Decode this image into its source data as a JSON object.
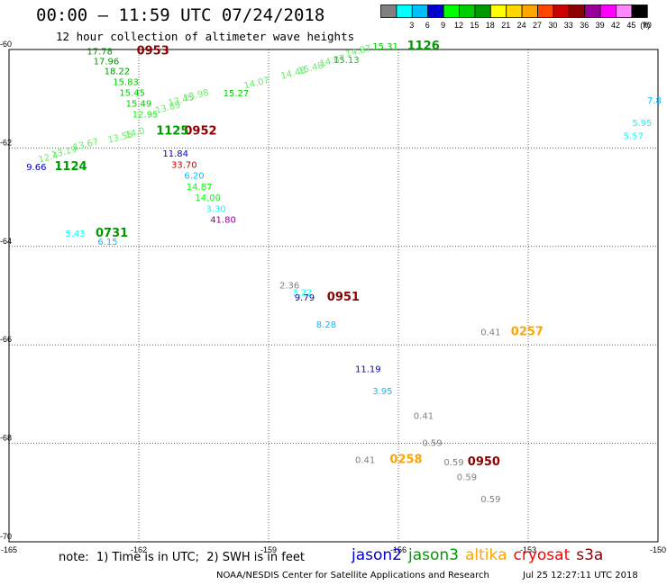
{
  "title": "00:00 – 11:59 UTC 07/24/2018",
  "subtitle": "12 hour collection of altimeter wave heights",
  "legend": {
    "unit_label": "(ft)",
    "bins": [
      {
        "label": "",
        "color": "#808080"
      },
      {
        "label": "3",
        "color": "#00ffff"
      },
      {
        "label": "6",
        "color": "#00bfff"
      },
      {
        "label": "9",
        "color": "#0000cd"
      },
      {
        "label": "12",
        "color": "#00ff00"
      },
      {
        "label": "15",
        "color": "#00cd00"
      },
      {
        "label": "18",
        "color": "#009900"
      },
      {
        "label": "21",
        "color": "#ffff00"
      },
      {
        "label": "24",
        "color": "#ffd700"
      },
      {
        "label": "27",
        "color": "#ffa500"
      },
      {
        "label": "30",
        "color": "#ff4500"
      },
      {
        "label": "33",
        "color": "#cd0000"
      },
      {
        "label": "36",
        "color": "#8b0000"
      },
      {
        "label": "39",
        "color": "#990099"
      },
      {
        "label": "42",
        "color": "#ff00ff"
      },
      {
        "label": "45",
        "color": "#ff88ff"
      },
      {
        "label": "70",
        "color": "#000000"
      }
    ]
  },
  "map": {
    "lon_ticks": [
      "-165",
      "-162",
      "-159",
      "-156",
      "-153",
      "-150"
    ],
    "lat_ticks": [
      "-60",
      "-62",
      "-64",
      "-66",
      "-68",
      "-70"
    ],
    "lon_range": [
      -165,
      -150
    ],
    "lat_range": [
      -60,
      -70
    ]
  },
  "observations": [
    {
      "text": "0953",
      "lon": -162.05,
      "lat": -60.1,
      "color": "#8b0000",
      "kind": "time"
    },
    {
      "text": "17.78",
      "lon": -163.2,
      "lat": -60.1,
      "color": "#009900"
    },
    {
      "text": "17.96",
      "lon": -163.05,
      "lat": -60.3,
      "color": "#009900"
    },
    {
      "text": "18.22",
      "lon": -162.8,
      "lat": -60.5,
      "color": "#009900"
    },
    {
      "text": "15.83",
      "lon": -162.6,
      "lat": -60.72,
      "color": "#00cd00"
    },
    {
      "text": "15.45",
      "lon": -162.45,
      "lat": -60.94,
      "color": "#00cd00"
    },
    {
      "text": "15.49",
      "lon": -162.3,
      "lat": -61.16,
      "color": "#00cd00"
    },
    {
      "text": "12.95",
      "lon": -162.15,
      "lat": -61.38,
      "color": "#00ff00"
    },
    {
      "text": "11.84",
      "lon": -161.45,
      "lat": -62.18,
      "color": "#0000cd"
    },
    {
      "text": "33.70",
      "lon": -161.25,
      "lat": -62.4,
      "color": "#cd0000"
    },
    {
      "text": "6.20",
      "lon": -160.95,
      "lat": -62.62,
      "color": "#00bfff"
    },
    {
      "text": "14.87",
      "lon": -160.9,
      "lat": -62.85,
      "color": "#00ff00"
    },
    {
      "text": "14.00",
      "lon": -160.7,
      "lat": -63.07,
      "color": "#00ff00"
    },
    {
      "text": "3.30",
      "lon": -160.45,
      "lat": -63.3,
      "color": "#00ffff"
    },
    {
      "text": "41.80",
      "lon": -160.35,
      "lat": -63.52,
      "color": "#990099"
    },
    {
      "text": "0952",
      "lon": -160.95,
      "lat": -61.73,
      "color": "#8b0000",
      "kind": "time"
    },
    {
      "text": "1125",
      "lon": -161.6,
      "lat": -61.73,
      "color": "#009900",
      "kind": "time"
    },
    {
      "text": "9.66",
      "lon": -164.6,
      "lat": -62.45,
      "color": "#0000cd"
    },
    {
      "text": "1124",
      "lon": -163.95,
      "lat": -62.45,
      "color": "#009900",
      "kind": "time"
    },
    {
      "text": "12.4",
      "lon": -164.3,
      "lat": -62.3,
      "color": "#66ee66"
    },
    {
      "text": "13.19",
      "lon": -164.0,
      "lat": -62.2,
      "color": "#66ee66"
    },
    {
      "text": "13.67",
      "lon": -163.5,
      "lat": -62.05,
      "color": "#66ee66"
    },
    {
      "text": "13.55",
      "lon": -162.7,
      "lat": -61.9,
      "color": "#66ee66"
    },
    {
      "text": "14.0",
      "lon": -162.3,
      "lat": -61.8,
      "color": "#66ee66"
    },
    {
      "text": "13.89",
      "lon": -161.6,
      "lat": -61.3,
      "color": "#66ee66"
    },
    {
      "text": "13.45",
      "lon": -161.3,
      "lat": -61.15,
      "color": "#66ee66"
    },
    {
      "text": "13.98",
      "lon": -160.95,
      "lat": -61.05,
      "color": "#66ee66"
    },
    {
      "text": "15.27",
      "lon": -160.05,
      "lat": -60.95,
      "color": "#00cd00"
    },
    {
      "text": "14.07",
      "lon": -159.55,
      "lat": -60.8,
      "color": "#66ee66"
    },
    {
      "text": "14.48",
      "lon": -158.7,
      "lat": -60.6,
      "color": "#66ee66"
    },
    {
      "text": "15.48",
      "lon": -158.3,
      "lat": -60.5,
      "color": "#66ee66"
    },
    {
      "text": "14.87",
      "lon": -157.8,
      "lat": -60.35,
      "color": "#66ee66"
    },
    {
      "text": "15.13",
      "lon": -157.5,
      "lat": -60.27,
      "color": "#00cd00"
    },
    {
      "text": "14.87",
      "lon": -157.2,
      "lat": -60.15,
      "color": "#66ee66"
    },
    {
      "text": "15.31",
      "lon": -156.6,
      "lat": -60.0,
      "color": "#00cd00"
    },
    {
      "text": "1126",
      "lon": -155.8,
      "lat": -60.0,
      "color": "#009900",
      "kind": "time"
    },
    {
      "text": "5.43",
      "lon": -163.7,
      "lat": -63.8,
      "color": "#00ffff"
    },
    {
      "text": "0731",
      "lon": -163.0,
      "lat": -63.8,
      "color": "#009900",
      "kind": "time"
    },
    {
      "text": "6.15",
      "lon": -162.95,
      "lat": -63.97,
      "color": "#00bfff"
    },
    {
      "text": "2.36",
      "lon": -158.75,
      "lat": -64.85,
      "color": "#808080"
    },
    {
      "text": "3.22",
      "lon": -158.45,
      "lat": -65.0,
      "color": "#00ffff"
    },
    {
      "text": "9.79",
      "lon": -158.4,
      "lat": -65.1,
      "color": "#0000cd"
    },
    {
      "text": "0951",
      "lon": -157.65,
      "lat": -65.1,
      "color": "#8b0000",
      "kind": "time"
    },
    {
      "text": "8.28",
      "lon": -157.9,
      "lat": -65.65,
      "color": "#00bfff"
    },
    {
      "text": "0.41",
      "lon": -154.1,
      "lat": -65.8,
      "color": "#808080"
    },
    {
      "text": "0257",
      "lon": -153.4,
      "lat": -65.8,
      "color": "#ffa500",
      "kind": "time"
    },
    {
      "text": "11.19",
      "lon": -157.0,
      "lat": -66.55,
      "color": "#0000cd"
    },
    {
      "text": "3.95",
      "lon": -156.6,
      "lat": -67.0,
      "color": "#00bfff"
    },
    {
      "text": "0.41",
      "lon": -155.65,
      "lat": -67.5,
      "color": "#808080"
    },
    {
      "text": "0.59",
      "lon": -155.45,
      "lat": -68.05,
      "color": "#808080"
    },
    {
      "text": "0.41",
      "lon": -157.0,
      "lat": -68.4,
      "color": "#808080"
    },
    {
      "text": "0258",
      "lon": -156.2,
      "lat": -68.4,
      "color": "#ffa500",
      "kind": "time"
    },
    {
      "text": "0.59",
      "lon": -154.95,
      "lat": -68.45,
      "color": "#808080"
    },
    {
      "text": "0950",
      "lon": -154.4,
      "lat": -68.45,
      "color": "#8b0000",
      "kind": "time"
    },
    {
      "text": "0.59",
      "lon": -154.65,
      "lat": -68.75,
      "color": "#808080"
    },
    {
      "text": "0.59",
      "lon": -154.1,
      "lat": -69.2,
      "color": "#808080"
    },
    {
      "text": "5.95",
      "lon": -150.6,
      "lat": -61.55,
      "color": "#00ffff"
    },
    {
      "text": "5.57",
      "lon": -150.8,
      "lat": -61.82,
      "color": "#00ffff"
    },
    {
      "text": "7.8",
      "lon": -150.25,
      "lat": -61.1,
      "color": "#00bfff"
    }
  ],
  "footer": {
    "note": "note:  1) Time is in UTC;  2) SWH is in feet",
    "satellites": [
      {
        "name": "jason2",
        "color": "#0000cd"
      },
      {
        "name": "jason3",
        "color": "#009900"
      },
      {
        "name": "altika",
        "color": "#ffa500"
      },
      {
        "name": "cryosat",
        "color": "#ff0000"
      },
      {
        "name": "s3a",
        "color": "#8b0000"
      }
    ],
    "credit": "NOAA/NESDIS Center for Satellite Applications and Research",
    "timestamp": "Jul 25 12:27:11 UTC 2018"
  }
}
